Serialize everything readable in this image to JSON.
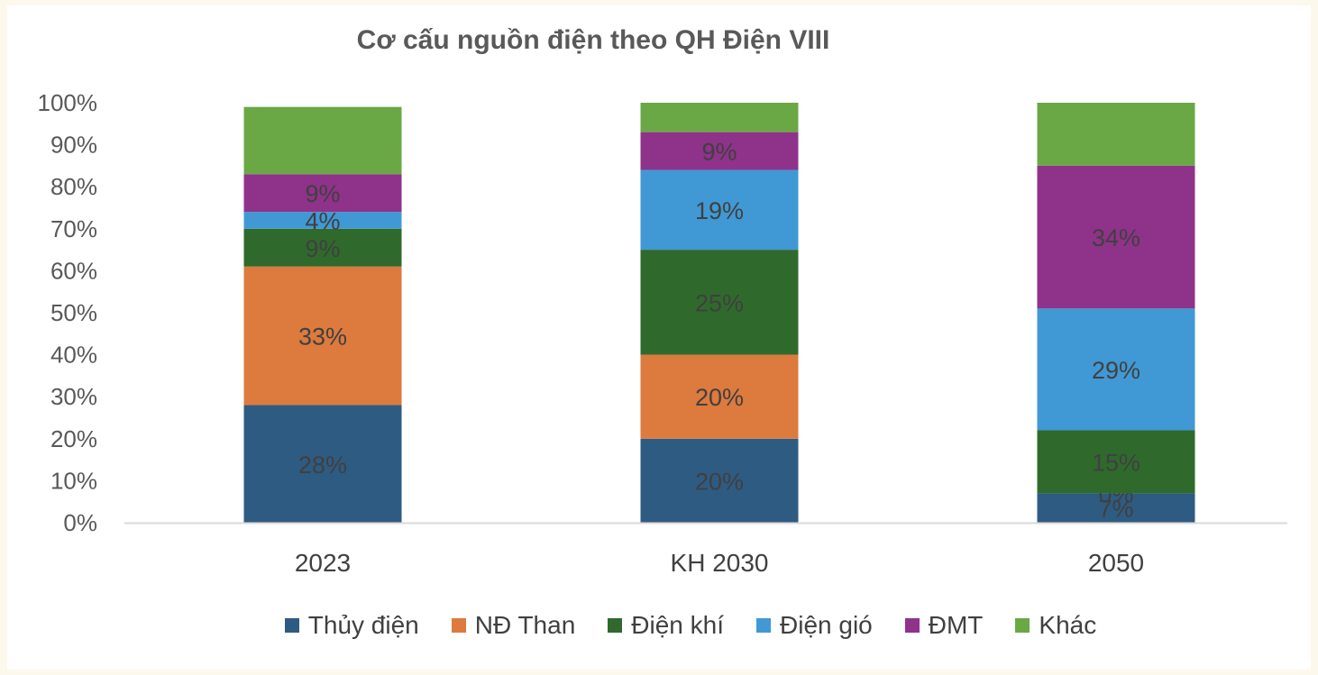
{
  "chart_data": {
    "type": "bar",
    "stacked": true,
    "normalized": true,
    "title": "Cơ cấu nguồn điện theo QH Điện VIII",
    "categories": [
      "2023",
      "KH 2030",
      "2050"
    ],
    "ylim": [
      0,
      100
    ],
    "yticks": [
      "0%",
      "10%",
      "20%",
      "30%",
      "40%",
      "50%",
      "60%",
      "70%",
      "80%",
      "90%",
      "100%"
    ],
    "grid": false,
    "legend": "bottom",
    "series": [
      {
        "name": "Thủy điện",
        "color": "#2e5b82",
        "values": [
          28,
          20,
          7
        ],
        "labels": [
          "28%",
          "20%",
          "7%"
        ]
      },
      {
        "name": "NĐ Than",
        "color": "#dd7a3e",
        "values": [
          33,
          20,
          0
        ],
        "labels": [
          "33%",
          "20%",
          "0%"
        ]
      },
      {
        "name": "Điện khí",
        "color": "#2f6a2c",
        "values": [
          9,
          25,
          15
        ],
        "labels": [
          "9%",
          "25%",
          "15%"
        ]
      },
      {
        "name": "Điện gió",
        "color": "#4099d4",
        "values": [
          4,
          19,
          29
        ],
        "labels": [
          "4%",
          "19%",
          "29%"
        ]
      },
      {
        "name": "ĐMT",
        "color": "#8f328a",
        "values": [
          9,
          9,
          34
        ],
        "labels": [
          "9%",
          "9%",
          "34%"
        ]
      },
      {
        "name": "Khác",
        "color": "#6aa846",
        "values": [
          16,
          7,
          15
        ],
        "labels": [
          "",
          "",
          ""
        ]
      }
    ]
  }
}
